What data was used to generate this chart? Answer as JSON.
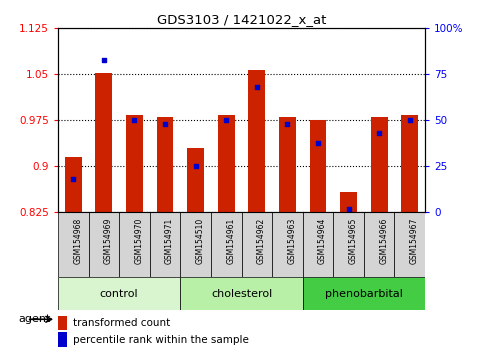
{
  "title": "GDS3103 / 1421022_x_at",
  "samples": [
    "GSM154968",
    "GSM154969",
    "GSM154970",
    "GSM154971",
    "GSM154510",
    "GSM154961",
    "GSM154962",
    "GSM154963",
    "GSM154964",
    "GSM154965",
    "GSM154966",
    "GSM154967"
  ],
  "transformed_count": [
    0.916,
    1.052,
    0.984,
    0.981,
    0.93,
    0.983,
    1.057,
    0.981,
    0.976,
    0.858,
    0.981,
    0.983
  ],
  "percentile_rank": [
    18,
    83,
    50,
    48,
    25,
    50,
    68,
    48,
    38,
    2,
    43,
    50
  ],
  "groups": [
    {
      "label": "control",
      "start": 0,
      "end": 4,
      "color": "#d8f5d0"
    },
    {
      "label": "cholesterol",
      "start": 4,
      "end": 8,
      "color": "#b8f0a8"
    },
    {
      "label": "phenobarbital",
      "start": 8,
      "end": 12,
      "color": "#44cc44"
    }
  ],
  "ylim_left": [
    0.825,
    1.125
  ],
  "ylim_right": [
    0,
    100
  ],
  "yticks_left": [
    0.825,
    0.9,
    0.975,
    1.05,
    1.125
  ],
  "yticks_right": [
    0,
    25,
    50,
    75,
    100
  ],
  "bar_color": "#cc2200",
  "dot_color": "#0000cc",
  "bar_bottom": 0.825,
  "plot_bg": "#ffffff",
  "label_bg": "#d8d8d8",
  "agent_label": "agent",
  "legend_items": [
    "transformed count",
    "percentile rank within the sample"
  ]
}
